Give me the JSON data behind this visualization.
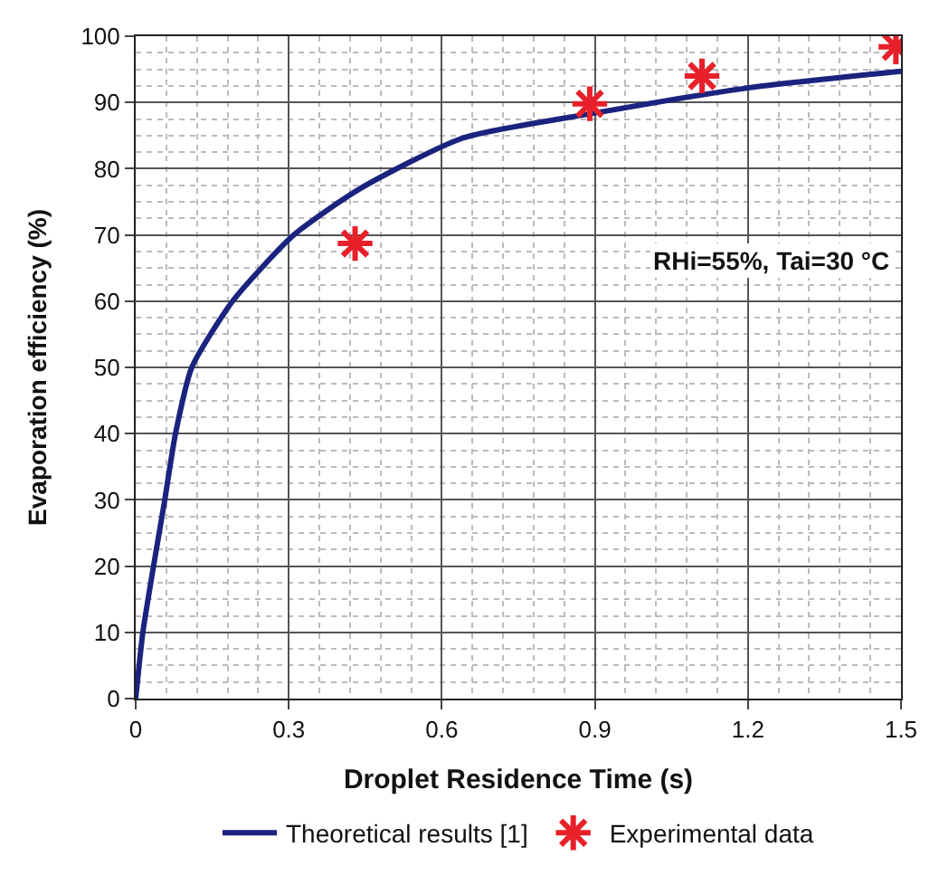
{
  "chart_data": {
    "type": "line",
    "xlabel": "Droplet Residence Time (s)",
    "ylabel": "Evaporation efficiency (%)",
    "annotations": [
      "RHi=55%, Tai=30 °C"
    ],
    "xlim": [
      0,
      1.5
    ],
    "xticks": [
      0,
      0.3,
      0.6,
      0.9,
      1.2,
      1.5
    ],
    "ylim": [
      0,
      100
    ],
    "yticks": [
      0,
      10,
      20,
      30,
      40,
      50,
      60,
      70,
      80,
      90,
      100
    ],
    "grid": true,
    "legend": "bottom",
    "series": [
      {
        "name": "Theoretical results [1]",
        "color": "#1a237e",
        "marker": "none",
        "line_style": "solid",
        "x": [
          0,
          0.014,
          0.035,
          0.057,
          0.078,
          0.11,
          0.19,
          0.31,
          0.44,
          0.64,
          0.9,
          1.2,
          1.5
        ],
        "values": [
          0,
          10,
          20,
          30,
          40,
          50,
          60,
          70,
          77,
          84.6,
          88.4,
          92.2,
          94.7
        ]
      },
      {
        "name": "Experimental data",
        "color": "#e8202a",
        "type": "scatter",
        "marker": "cross",
        "x": [
          0.43,
          0.89,
          1.11,
          1.49
        ],
        "values": [
          68.7,
          89.8,
          94,
          98.4
        ]
      }
    ]
  }
}
